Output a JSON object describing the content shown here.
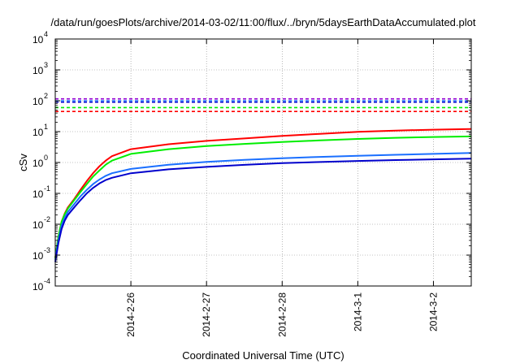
{
  "chart_data": {
    "type": "line",
    "title": "/data/run/goesPlots/archive/2014-03-02/11:00/flux/../bryn/5daysEarthDataAccumulated.plot",
    "xlabel": "Coordinated Universal Time (UTC)",
    "ylabel": "cSv",
    "x_is_date": true,
    "xlim": [
      "2014-02-25T00:00",
      "2014-03-02T12:00"
    ],
    "x_ticks": [
      "2014-2-26",
      "2014-2-27",
      "2014-2-28",
      "2014-3-1",
      "2014-3-2"
    ],
    "y_scale": "log",
    "ylim": [
      0.0001,
      10000
    ],
    "y_ticks": [
      {
        "base": "10",
        "exp": "-4"
      },
      {
        "base": "10",
        "exp": "-3"
      },
      {
        "base": "10",
        "exp": "-2"
      },
      {
        "base": "10",
        "exp": "-1"
      },
      {
        "base": "10",
        "exp": "0"
      },
      {
        "base": "10",
        "exp": "1"
      },
      {
        "base": "10",
        "exp": "2"
      },
      {
        "base": "10",
        "exp": "3"
      },
      {
        "base": "10",
        "exp": "4"
      }
    ],
    "grid": true,
    "series": [
      {
        "color": "#ff0000",
        "x": [
          "2014-02-25T00:00",
          "2014-02-25T01:00",
          "2014-02-25T02:00",
          "2014-02-25T03:00",
          "2014-02-25T04:00",
          "2014-02-25T06:00",
          "2014-02-25T08:00",
          "2014-02-25T10:00",
          "2014-02-25T12:00",
          "2014-02-25T14:00",
          "2014-02-25T16:00",
          "2014-02-25T18:00",
          "2014-02-26T00:00",
          "2014-02-26T12:00",
          "2014-02-27T00:00",
          "2014-02-27T12:00",
          "2014-02-28T00:00",
          "2014-02-28T12:00",
          "2014-03-01T00:00",
          "2014-03-01T12:00",
          "2014-03-02T00:00",
          "2014-03-02T12:00"
        ],
        "values": [
          0.0008,
          0.004,
          0.012,
          0.022,
          0.035,
          0.065,
          0.13,
          0.25,
          0.45,
          0.75,
          1.15,
          1.6,
          2.7,
          3.9,
          5.0,
          6.0,
          7.3,
          8.5,
          9.8,
          10.8,
          11.6,
          12.2
        ]
      },
      {
        "color": "#00ee00",
        "x": [
          "2014-02-25T00:00",
          "2014-02-25T01:00",
          "2014-02-25T02:00",
          "2014-02-25T03:00",
          "2014-02-25T04:00",
          "2014-02-25T06:00",
          "2014-02-25T08:00",
          "2014-02-25T10:00",
          "2014-02-25T12:00",
          "2014-02-25T14:00",
          "2014-02-25T16:00",
          "2014-02-25T18:00",
          "2014-02-26T00:00",
          "2014-02-26T12:00",
          "2014-02-27T00:00",
          "2014-02-27T12:00",
          "2014-02-28T00:00",
          "2014-02-28T12:00",
          "2014-03-01T00:00",
          "2014-03-01T12:00",
          "2014-03-02T00:00",
          "2014-03-02T12:00"
        ],
        "values": [
          0.0008,
          0.004,
          0.012,
          0.021,
          0.032,
          0.06,
          0.11,
          0.2,
          0.35,
          0.55,
          0.85,
          1.15,
          1.9,
          2.7,
          3.4,
          4.0,
          4.6,
          5.2,
          5.8,
          6.3,
          6.7,
          7.0
        ]
      },
      {
        "color": "#1a6fff",
        "x": [
          "2014-02-25T00:00",
          "2014-02-25T01:00",
          "2014-02-25T02:00",
          "2014-02-25T03:00",
          "2014-02-25T04:00",
          "2014-02-25T06:00",
          "2014-02-25T08:00",
          "2014-02-25T10:00",
          "2014-02-25T12:00",
          "2014-02-25T14:00",
          "2014-02-25T16:00",
          "2014-02-25T18:00",
          "2014-02-26T00:00",
          "2014-02-26T12:00",
          "2014-02-27T00:00",
          "2014-02-27T12:00",
          "2014-02-28T00:00",
          "2014-02-28T12:00",
          "2014-03-01T00:00",
          "2014-03-01T12:00",
          "2014-03-02T00:00",
          "2014-03-02T12:00"
        ],
        "values": [
          0.0007,
          0.003,
          0.009,
          0.016,
          0.025,
          0.045,
          0.08,
          0.13,
          0.2,
          0.28,
          0.37,
          0.45,
          0.62,
          0.85,
          1.05,
          1.22,
          1.38,
          1.52,
          1.65,
          1.78,
          1.9,
          2.05
        ]
      },
      {
        "color": "#0000cc",
        "x": [
          "2014-02-25T00:00",
          "2014-02-25T01:00",
          "2014-02-25T02:00",
          "2014-02-25T03:00",
          "2014-02-25T04:00",
          "2014-02-25T06:00",
          "2014-02-25T08:00",
          "2014-02-25T10:00",
          "2014-02-25T12:00",
          "2014-02-25T14:00",
          "2014-02-25T16:00",
          "2014-02-25T18:00",
          "2014-02-26T00:00",
          "2014-02-26T12:00",
          "2014-02-27T00:00",
          "2014-02-27T12:00",
          "2014-02-28T00:00",
          "2014-02-28T12:00",
          "2014-03-01T00:00",
          "2014-03-01T12:00",
          "2014-03-02T00:00",
          "2014-03-02T12:00"
        ],
        "values": [
          0.0006,
          0.0025,
          0.007,
          0.013,
          0.02,
          0.035,
          0.06,
          0.1,
          0.15,
          0.21,
          0.27,
          0.32,
          0.45,
          0.6,
          0.72,
          0.84,
          0.95,
          1.04,
          1.12,
          1.2,
          1.27,
          1.33
        ]
      }
    ],
    "reference_lines": [
      {
        "color": "#9400d3",
        "value": 115
      },
      {
        "color": "#1a6fff",
        "value": 100
      },
      {
        "color": "#0000cc",
        "value": 90
      },
      {
        "color": "#00ee00",
        "value": 60
      },
      {
        "color": "#ff0000",
        "value": 45
      }
    ]
  }
}
